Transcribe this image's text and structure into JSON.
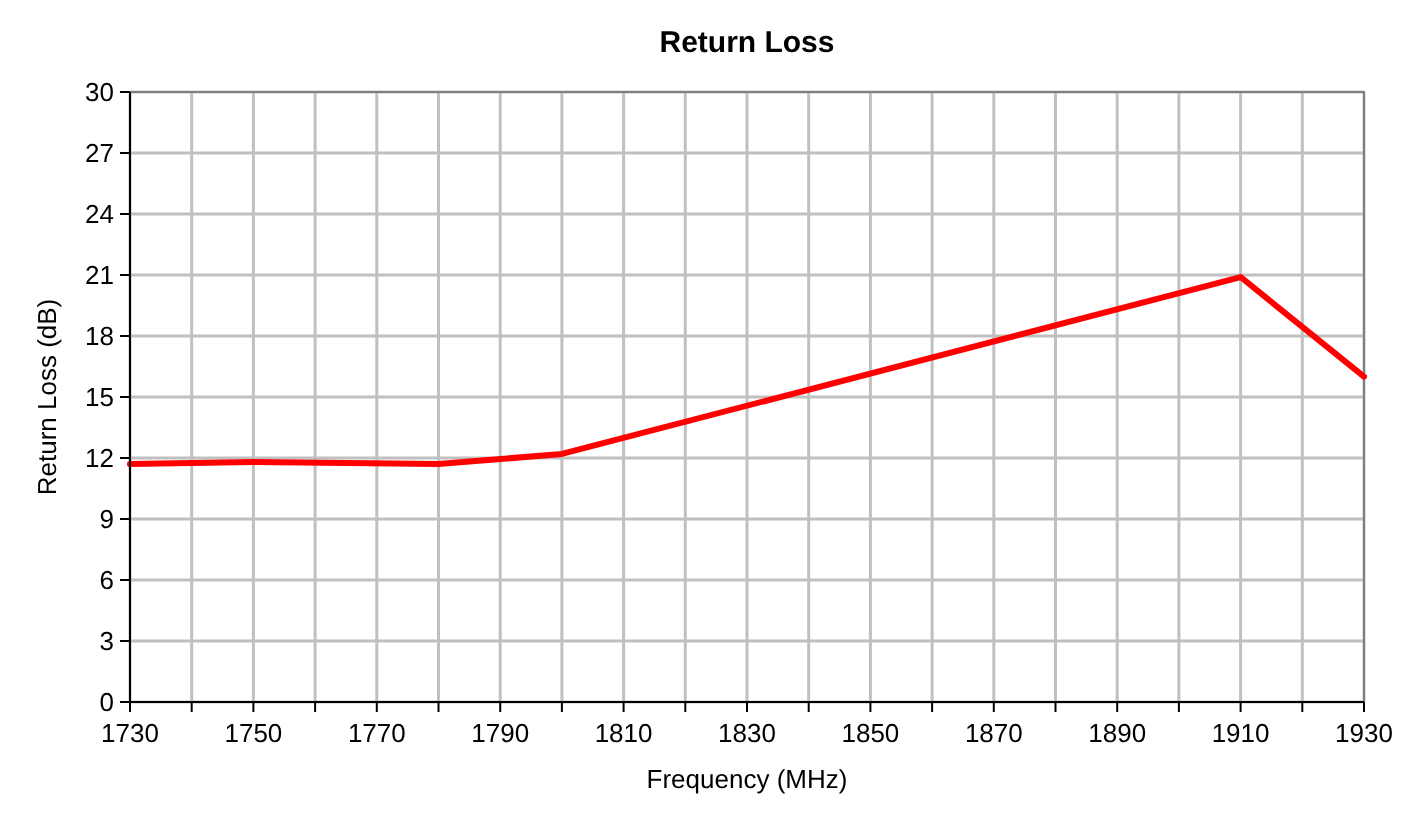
{
  "chart_data": {
    "type": "line",
    "title": "Return Loss",
    "xlabel": "Frequency (MHz)",
    "ylabel": "Return Loss (dB)",
    "x": [
      1730,
      1750,
      1780,
      1800,
      1910,
      1930
    ],
    "series": [
      {
        "color": "#ff0000",
        "values": [
          11.7,
          11.8,
          11.7,
          12.2,
          20.9,
          16.0
        ]
      }
    ],
    "xlim": [
      1730,
      1930
    ],
    "xticks": [
      1730,
      {
        "value": 1740,
        "label": null
      },
      1750,
      {
        "value": 1760,
        "label": null
      },
      1770,
      {
        "value": 1780,
        "label": null
      },
      1790,
      {
        "value": 1800,
        "label": null
      },
      1810,
      {
        "value": 1820,
        "label": null
      },
      1830,
      {
        "value": 1840,
        "label": null
      },
      1850,
      {
        "value": 1860,
        "label": null
      },
      1870,
      {
        "value": 1880,
        "label": null
      },
      1890,
      {
        "value": 1900,
        "label": null
      },
      1910,
      {
        "value": 1920,
        "label": null
      },
      1930
    ],
    "ylim": [
      0,
      30
    ],
    "yticks": [
      0,
      3,
      6,
      9,
      12,
      15,
      18,
      21,
      24,
      27,
      30
    ],
    "grid": true,
    "marker": "none",
    "line_style": "solid"
  }
}
